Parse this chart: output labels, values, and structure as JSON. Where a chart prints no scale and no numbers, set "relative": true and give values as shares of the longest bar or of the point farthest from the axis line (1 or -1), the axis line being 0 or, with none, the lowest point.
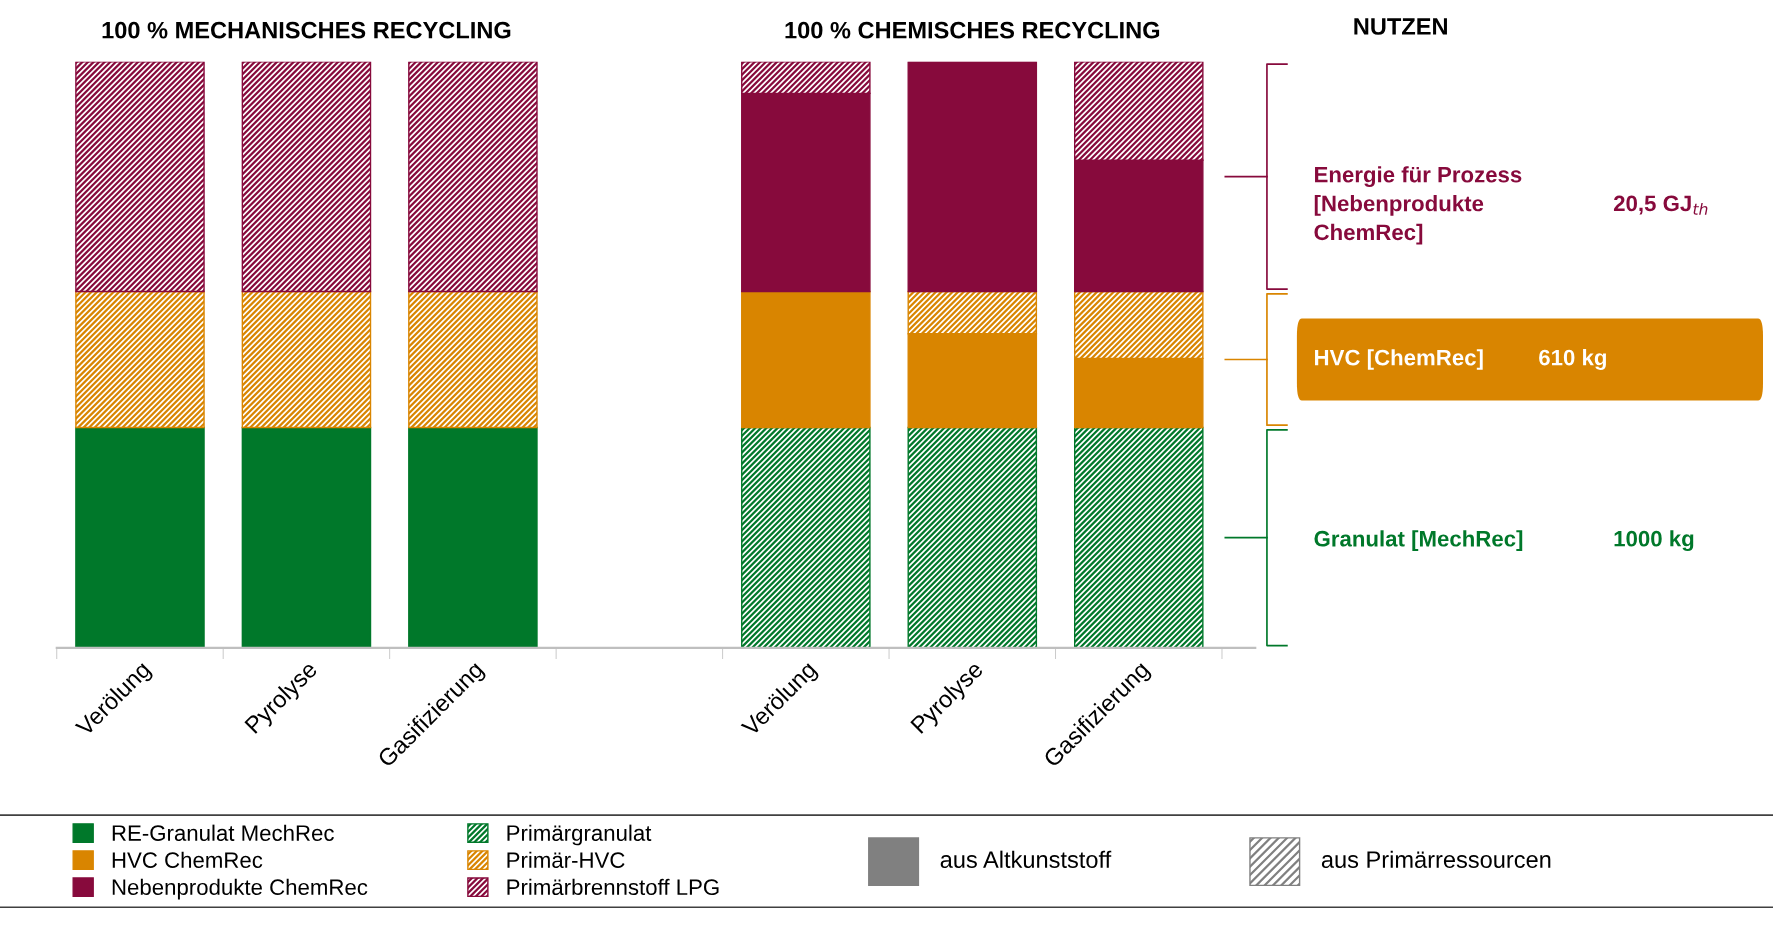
{
  "chart_data": {
    "type": "bar",
    "stacked": true,
    "relative": true,
    "legend": "bottom",
    "grid": false,
    "categories": [
      "Verölung",
      "Pyrolyse",
      "Gasifizierung",
      null,
      "Verölung",
      "Pyrolyse",
      "Gasifizierung"
    ],
    "series": [
      {
        "name": "RE-Granulat MechRec",
        "color": "#00782a",
        "values": [
          0.376,
          0.376,
          0.376,
          null,
          null,
          null,
          null
        ]
      },
      {
        "name": "Primärgranulat",
        "color": "#00782a",
        "values": [
          null,
          null,
          null,
          null,
          0.376,
          0.376,
          0.376
        ]
      },
      {
        "name": "HVC ChemRec",
        "color": "#d98500",
        "values": [
          null,
          null,
          null,
          null,
          0.232,
          0.16,
          0.118
        ]
      },
      {
        "name": "Primär-HVC",
        "color": "#d98500",
        "values": [
          0.232,
          0.232,
          0.232,
          null,
          null,
          0.072,
          0.114
        ]
      },
      {
        "name": "Nebenprodukte ChemRec",
        "color": "#870a3c",
        "values": [
          null,
          null,
          null,
          null,
          0.338,
          0.392,
          0.224
        ]
      },
      {
        "name": "Primärbrennstoff LPG",
        "color": "#870a3c",
        "values": [
          0.392,
          0.392,
          0.392,
          null,
          0.054,
          null,
          0.168
        ]
      }
    ],
    "annotations": [
      "100 % MECHANISCHES RECYCLING",
      "100 % CHEMISCHES RECYCLING",
      "NUTZEN",
      "Energie für Prozess\n[Nebenprodukte\nChemRec]",
      "20,5 GJ$_{th}$",
      "HVC [ChemRec]",
      "610 kg",
      "Granulat [MechRec]",
      "1000 kg",
      "aus Altkunststoff",
      "aus Primärressourcen"
    ]
  }
}
